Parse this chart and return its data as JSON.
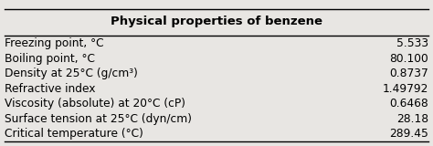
{
  "title": "Physical properties of benzene",
  "rows": [
    {
      "property": "Freezing point, °C",
      "value": "5.533"
    },
    {
      "property": "Boiling point, °C",
      "value": "80.100"
    },
    {
      "property": "Density at 25°C (g/cm³)",
      "value": "0.8737"
    },
    {
      "property": "Refractive index",
      "value": "1.49792"
    },
    {
      "property": "Viscosity (absolute) at 20°C (cP)",
      "value": "0.6468"
    },
    {
      "property": "Surface tension at 25°C (dyn/cm)",
      "value": "28.18"
    },
    {
      "property": "Critical temperature (°C)",
      "value": "289.45"
    }
  ],
  "bg_color": "#e8e6e3",
  "line_color": "#000000",
  "text_color": "#000000",
  "title_fontsize": 9.5,
  "body_fontsize": 8.8,
  "fig_width": 4.74,
  "fig_height": 1.6,
  "dpi": 100
}
